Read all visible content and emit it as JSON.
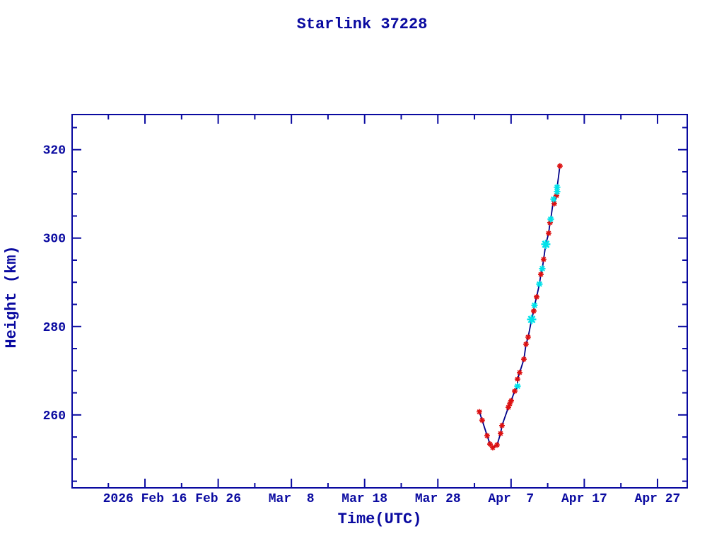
{
  "page": {
    "background": "#ffffff"
  },
  "chart_data": {
    "type": "line",
    "title": "Starlink 37228",
    "xlabel": "Time(UTC)",
    "ylabel": "Height (km)",
    "text_color": "#0a0aa0",
    "axis_color": "#0a0aa0",
    "line_color": "#000088",
    "grid": false,
    "legend": "none",
    "x_axis": {
      "unit": "days since 2026-02-16",
      "xlim_days": [
        -9.95,
        74.06
      ],
      "major_ticks_days": [
        0,
        10,
        20,
        30,
        40,
        50,
        60,
        70
      ],
      "major_tick_labels": [
        "2026 Feb 16",
        "Feb 26",
        "Mar  8",
        "Mar 18",
        "Mar 28",
        "Apr  7",
        "Apr 17",
        "Apr 27"
      ],
      "minor_ticks_days": [
        -5,
        5,
        15,
        25,
        35,
        45,
        55,
        65
      ]
    },
    "y_axis": {
      "unit": "km",
      "ylim": [
        243.5,
        327.95
      ],
      "major_ticks": [
        260,
        280,
        300,
        320
      ],
      "major_tick_labels": [
        "260",
        "280",
        "300",
        "320"
      ],
      "minor_ticks": [
        245,
        250,
        255,
        265,
        270,
        275,
        285,
        290,
        295,
        305,
        310,
        315,
        325
      ]
    },
    "series": [
      {
        "name": "height-observations-red",
        "marker": "asterisk",
        "color": "#dd1111",
        "points": [
          [
            45.67,
            260.7
          ],
          [
            46.05,
            258.8
          ],
          [
            46.73,
            255.3
          ],
          [
            47.12,
            253.4
          ],
          [
            47.5,
            252.6
          ],
          [
            48.08,
            253.2
          ],
          [
            48.57,
            255.8
          ],
          [
            48.76,
            257.6
          ],
          [
            49.63,
            261.7
          ],
          [
            49.82,
            262.5
          ],
          [
            50.01,
            263.2
          ],
          [
            50.5,
            265.4
          ],
          [
            50.88,
            268.1
          ],
          [
            51.17,
            269.6
          ],
          [
            51.75,
            272.6
          ],
          [
            52.04,
            276.0
          ],
          [
            52.33,
            277.6
          ],
          [
            53.1,
            283.5
          ],
          [
            53.49,
            286.7
          ],
          [
            54.07,
            291.8
          ],
          [
            54.45,
            295.2
          ],
          [
            55.13,
            301.1
          ],
          [
            55.32,
            303.5
          ],
          [
            55.9,
            307.8
          ],
          [
            56.19,
            309.6
          ],
          [
            56.67,
            316.3
          ]
        ]
      },
      {
        "name": "height-observations-cyan",
        "marker": "asterisk",
        "color": "#00e2ea",
        "size_legend": {
          "1": "normal",
          "2": "large"
        },
        "points": [
          [
            50.88,
            266.5,
            1
          ],
          [
            52.81,
            281.6,
            2
          ],
          [
            53.2,
            284.8,
            1
          ],
          [
            53.87,
            289.6,
            1
          ],
          [
            54.26,
            293.1,
            1
          ],
          [
            54.74,
            298.6,
            2
          ],
          [
            55.42,
            304.3,
            1
          ],
          [
            55.8,
            308.8,
            1
          ],
          [
            56.29,
            310.5,
            1
          ],
          [
            56.29,
            311.5,
            1
          ]
        ]
      }
    ]
  }
}
